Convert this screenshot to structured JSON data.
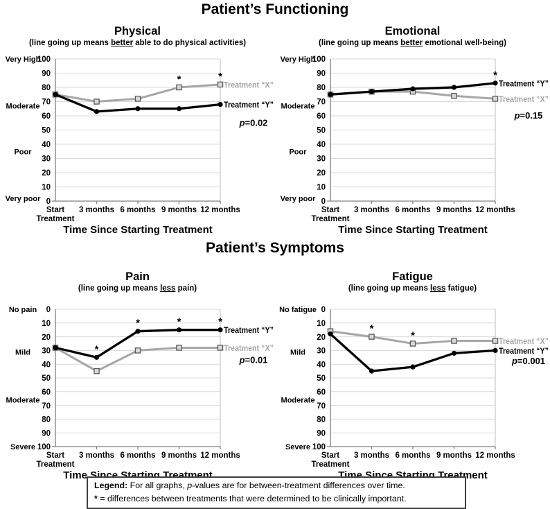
{
  "page": {
    "section1_title": "Patient’s Functioning",
    "section2_title": "Patient’s Symptoms"
  },
  "colors": {
    "black_series": "#000000",
    "gray_series": "#a6a6a6",
    "gray_marker_fill": "#d9d9d9",
    "gray_marker_stroke": "#595959",
    "gridline": "#d9d9d9",
    "axis": "#7f7f7f",
    "text": "#000000"
  },
  "legend_box": {
    "line1_bold": "Legend:",
    "line1_pre": " For all graphs, ",
    "line1_italic": "p",
    "line1_post": "-values are for between-treatment differences over time.",
    "line2_star": "* ",
    "line2_rest": "= differences between treatments that were determined to be clinically important."
  },
  "chart_data": [
    {
      "id": "physical",
      "type": "line",
      "section": "functioning",
      "title": "Physical",
      "subtitle_pre": "(line going up means ",
      "subtitle_underline": "better",
      "subtitle_post": " able to do physical activities)",
      "xlabel": "Time Since Starting Treatment",
      "x_tick_labels": [
        [
          "Start",
          "Treatment"
        ],
        [
          "3 months"
        ],
        [
          "6 months"
        ],
        [
          "9 months"
        ],
        [
          "12 months"
        ]
      ],
      "y_axis": {
        "min": 0,
        "max": 100,
        "tick_step": 10,
        "reversed": false,
        "category_labels": [
          {
            "label": "Very High",
            "value": 100
          },
          {
            "label": "Moderate",
            "value": 67
          },
          {
            "label": "Poor",
            "value": 35
          },
          {
            "label": "Very poor",
            "value": 2
          }
        ]
      },
      "series": [
        {
          "name": "Treatment “X”",
          "color_key": "gray",
          "marker": "square",
          "values": [
            75,
            70,
            72,
            80,
            82
          ]
        },
        {
          "name": "Treatment “Y”",
          "color_key": "black",
          "marker": "circle",
          "values": [
            75,
            63,
            65,
            65,
            68
          ]
        }
      ],
      "asterisks": [
        {
          "series": "Treatment “X”",
          "index": 3
        },
        {
          "series": "Treatment “X”",
          "index": 4
        }
      ],
      "p_text": "p=0.02",
      "p_anchor_value": 55
    },
    {
      "id": "emotional",
      "type": "line",
      "section": "functioning",
      "title": "Emotional",
      "subtitle_pre": "(line going up means ",
      "subtitle_underline": "better",
      "subtitle_post": " emotional well-being)",
      "xlabel": "Time Since Starting Treatment",
      "x_tick_labels": [
        [
          "Start",
          "Treatment"
        ],
        [
          "3 months"
        ],
        [
          "6 months"
        ],
        [
          "9 months"
        ],
        [
          "12 months"
        ]
      ],
      "y_axis": {
        "min": 0,
        "max": 100,
        "tick_step": 10,
        "reversed": false,
        "category_labels": [
          {
            "label": "Very High",
            "value": 100
          },
          {
            "label": "Moderate",
            "value": 67
          },
          {
            "label": "Poor",
            "value": 35
          },
          {
            "label": "Very poor",
            "value": 2
          }
        ]
      },
      "series": [
        {
          "name": "Treatment “X”",
          "color_key": "gray",
          "marker": "square",
          "values": [
            75,
            77,
            77,
            74,
            72
          ]
        },
        {
          "name": "Treatment “Y”",
          "color_key": "black",
          "marker": "circle",
          "values": [
            75,
            77,
            79,
            80,
            83
          ]
        }
      ],
      "asterisks": [
        {
          "series": "Treatment “Y”",
          "index": 4
        }
      ],
      "p_text": "p=0.15",
      "p_anchor_value": 60
    },
    {
      "id": "pain",
      "type": "line",
      "section": "symptoms",
      "title": "Pain",
      "subtitle_pre": "(line going up means ",
      "subtitle_underline": "less",
      "subtitle_post": " pain)",
      "xlabel": "Time Since Starting Treatment",
      "x_tick_labels": [
        [
          "Start",
          "Treatment"
        ],
        [
          "3 months"
        ],
        [
          "6 months"
        ],
        [
          "9 months"
        ],
        [
          "12 months"
        ]
      ],
      "y_axis": {
        "min": 0,
        "max": 100,
        "tick_step": 10,
        "reversed": true,
        "category_labels": [
          {
            "label": "No pain",
            "value": 0
          },
          {
            "label": "Mild",
            "value": 31
          },
          {
            "label": "Moderate",
            "value": 66
          },
          {
            "label": "Severe",
            "value": 100
          }
        ]
      },
      "series": [
        {
          "name": "Treatment “X”",
          "color_key": "gray",
          "marker": "square",
          "values": [
            28,
            45,
            30,
            28,
            28
          ]
        },
        {
          "name": "Treatment “Y”",
          "color_key": "black",
          "marker": "circle",
          "values": [
            28,
            35,
            16,
            15,
            15
          ]
        }
      ],
      "asterisks": [
        {
          "series": "Treatment “Y”",
          "index": 1
        },
        {
          "series": "Treatment “Y”",
          "index": 2
        },
        {
          "series": "Treatment “Y”",
          "index": 3
        },
        {
          "series": "Treatment “Y”",
          "index": 4
        }
      ],
      "p_text": "p=0.01",
      "p_anchor_value": 37
    },
    {
      "id": "fatigue",
      "type": "line",
      "section": "symptoms",
      "title": "Fatigue",
      "subtitle_pre": "(line going up means ",
      "subtitle_underline": "less",
      "subtitle_post": " fatigue)",
      "xlabel": "Time Since Starting Treatment",
      "x_tick_labels": [
        [
          "Start",
          "Treatment"
        ],
        [
          "3 months"
        ],
        [
          "6 months"
        ],
        [
          "9 months"
        ],
        [
          "12 months"
        ]
      ],
      "y_axis": {
        "min": 0,
        "max": 100,
        "tick_step": 10,
        "reversed": true,
        "category_labels": [
          {
            "label": "No fatigue",
            "value": 0
          },
          {
            "label": "Mild",
            "value": 31
          },
          {
            "label": "Moderate",
            "value": 66
          },
          {
            "label": "Severe",
            "value": 100
          }
        ]
      },
      "series": [
        {
          "name": "Treatment “X”",
          "color_key": "gray",
          "marker": "square",
          "values": [
            16,
            20,
            25,
            23,
            23
          ]
        },
        {
          "name": "Treatment “Y”",
          "color_key": "black",
          "marker": "circle",
          "values": [
            18,
            45,
            42,
            32,
            30
          ]
        }
      ],
      "asterisks": [
        {
          "series": "Treatment “X”",
          "index": 1
        },
        {
          "series": "Treatment “X”",
          "index": 2
        }
      ],
      "p_text": "p=0.001",
      "p_anchor_value": 38
    }
  ]
}
